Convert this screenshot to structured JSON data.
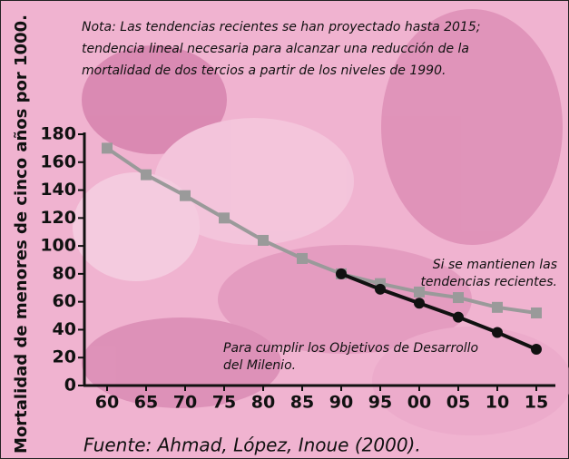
{
  "chart_data": {
    "type": "line",
    "note": [
      "Nota: Las tendencias recientes se han proyectado hasta 2015;",
      "tendencia lineal necesaria para alcanzar una reducción de la",
      "mortalidad de dos tercios a partir de los niveles de 1990."
    ],
    "y_label": "Mortalidad de menores de cinco años por 1000.",
    "source": "Fuente: Ahmad, López, Inoue (2000).",
    "categories": [
      "60",
      "65",
      "70",
      "75",
      "80",
      "85",
      "90",
      "95",
      "00",
      "05",
      "10",
      "15"
    ],
    "series": [
      {
        "name": [
          "Si se mantienen las",
          "tendencias recientes."
        ],
        "color": "#9a9a9a",
        "marker": "square",
        "values": [
          170,
          151,
          136,
          120,
          104,
          91,
          80,
          73,
          67,
          63,
          56,
          52
        ]
      },
      {
        "name": [
          "Para cumplir los Objetivos de Desarrollo",
          "del Milenio."
        ],
        "color": "#111111",
        "marker": "circle",
        "values": [
          null,
          null,
          null,
          null,
          null,
          null,
          80,
          69,
          59,
          49,
          38,
          26
        ]
      }
    ],
    "ylim": [
      0,
      180
    ],
    "yticks": [
      0,
      20,
      40,
      60,
      80,
      100,
      120,
      140,
      160,
      180
    ]
  }
}
